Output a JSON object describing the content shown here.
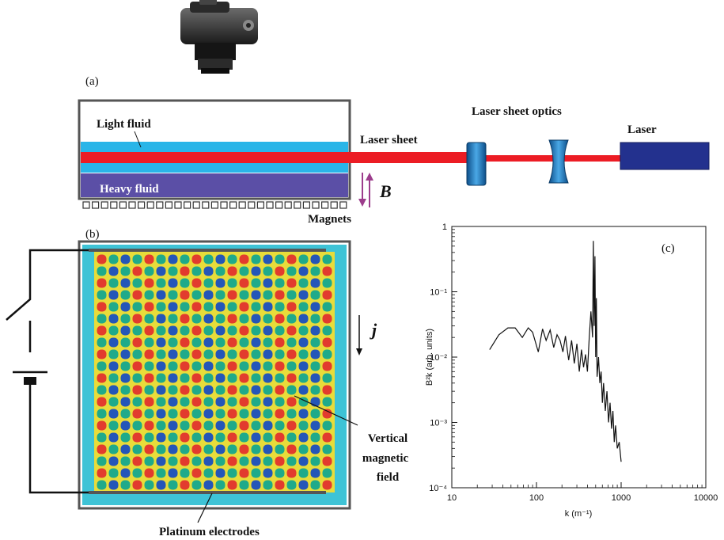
{
  "labels": {
    "panel_a": "(a)",
    "panel_b": "(b)",
    "panel_c": "(c)",
    "light_fluid": "Light fluid",
    "heavy_fluid": "Heavy fluid",
    "laser_sheet": "Laser sheet",
    "laser_sheet_optics": "Laser sheet optics",
    "laser": "Laser",
    "magnets": "Magnets",
    "b_field": "B",
    "current": "j",
    "vertical_magnetic_field": [
      "Vertical",
      "magnetic",
      "field"
    ],
    "platinum_electrodes": "Platinum electrodes"
  },
  "colors": {
    "laser_red": "#ec1c24",
    "fluid_cyan": "#29b5e8",
    "heavy_fluid": "#5b4fa6",
    "optics_blue": "#1f7fc0",
    "laser_body": "#23318e",
    "arrow_purple": "#9c3d8c",
    "tank_blue": "#3ec3d6"
  },
  "icons": [
    "camera-icon",
    "battery-icon",
    "switch-icon"
  ],
  "chart_data": {
    "type": "line",
    "xlabel": "k (m⁻¹)",
    "ylabel": "B²k (arb. units)",
    "xscale": "log",
    "yscale": "log",
    "xlim": [
      10,
      10000
    ],
    "ylim": [
      0.0001,
      1
    ],
    "xticks": [
      "10",
      "100",
      "1000",
      "10000"
    ],
    "yticks": [
      "10⁻⁴",
      "10⁻³",
      "10⁻²",
      "10⁻¹",
      "1"
    ],
    "series": [
      {
        "x": [
          28,
          36,
          46,
          56,
          68,
          80,
          90,
          105,
          118,
          130,
          145,
          160,
          175,
          190,
          205,
          220,
          240,
          260,
          280,
          300,
          320,
          340,
          360,
          380,
          400,
          420,
          440,
          460,
          470,
          480,
          490,
          500,
          510,
          520,
          540,
          560,
          580,
          600,
          620,
          650,
          680,
          710,
          740,
          770,
          800,
          830,
          860,
          900,
          950,
          1000
        ],
        "y": [
          0.013,
          0.022,
          0.028,
          0.028,
          0.02,
          0.028,
          0.024,
          0.012,
          0.027,
          0.018,
          0.026,
          0.014,
          0.022,
          0.018,
          0.012,
          0.021,
          0.009,
          0.018,
          0.008,
          0.016,
          0.006,
          0.013,
          0.007,
          0.011,
          0.006,
          0.02,
          0.05,
          0.02,
          0.6,
          0.03,
          0.35,
          0.01,
          0.08,
          0.005,
          0.01,
          0.004,
          0.006,
          0.002,
          0.004,
          0.0015,
          0.003,
          0.001,
          0.002,
          0.0008,
          0.0015,
          0.0005,
          0.0009,
          0.0004,
          0.0005,
          0.00025
        ]
      }
    ]
  }
}
